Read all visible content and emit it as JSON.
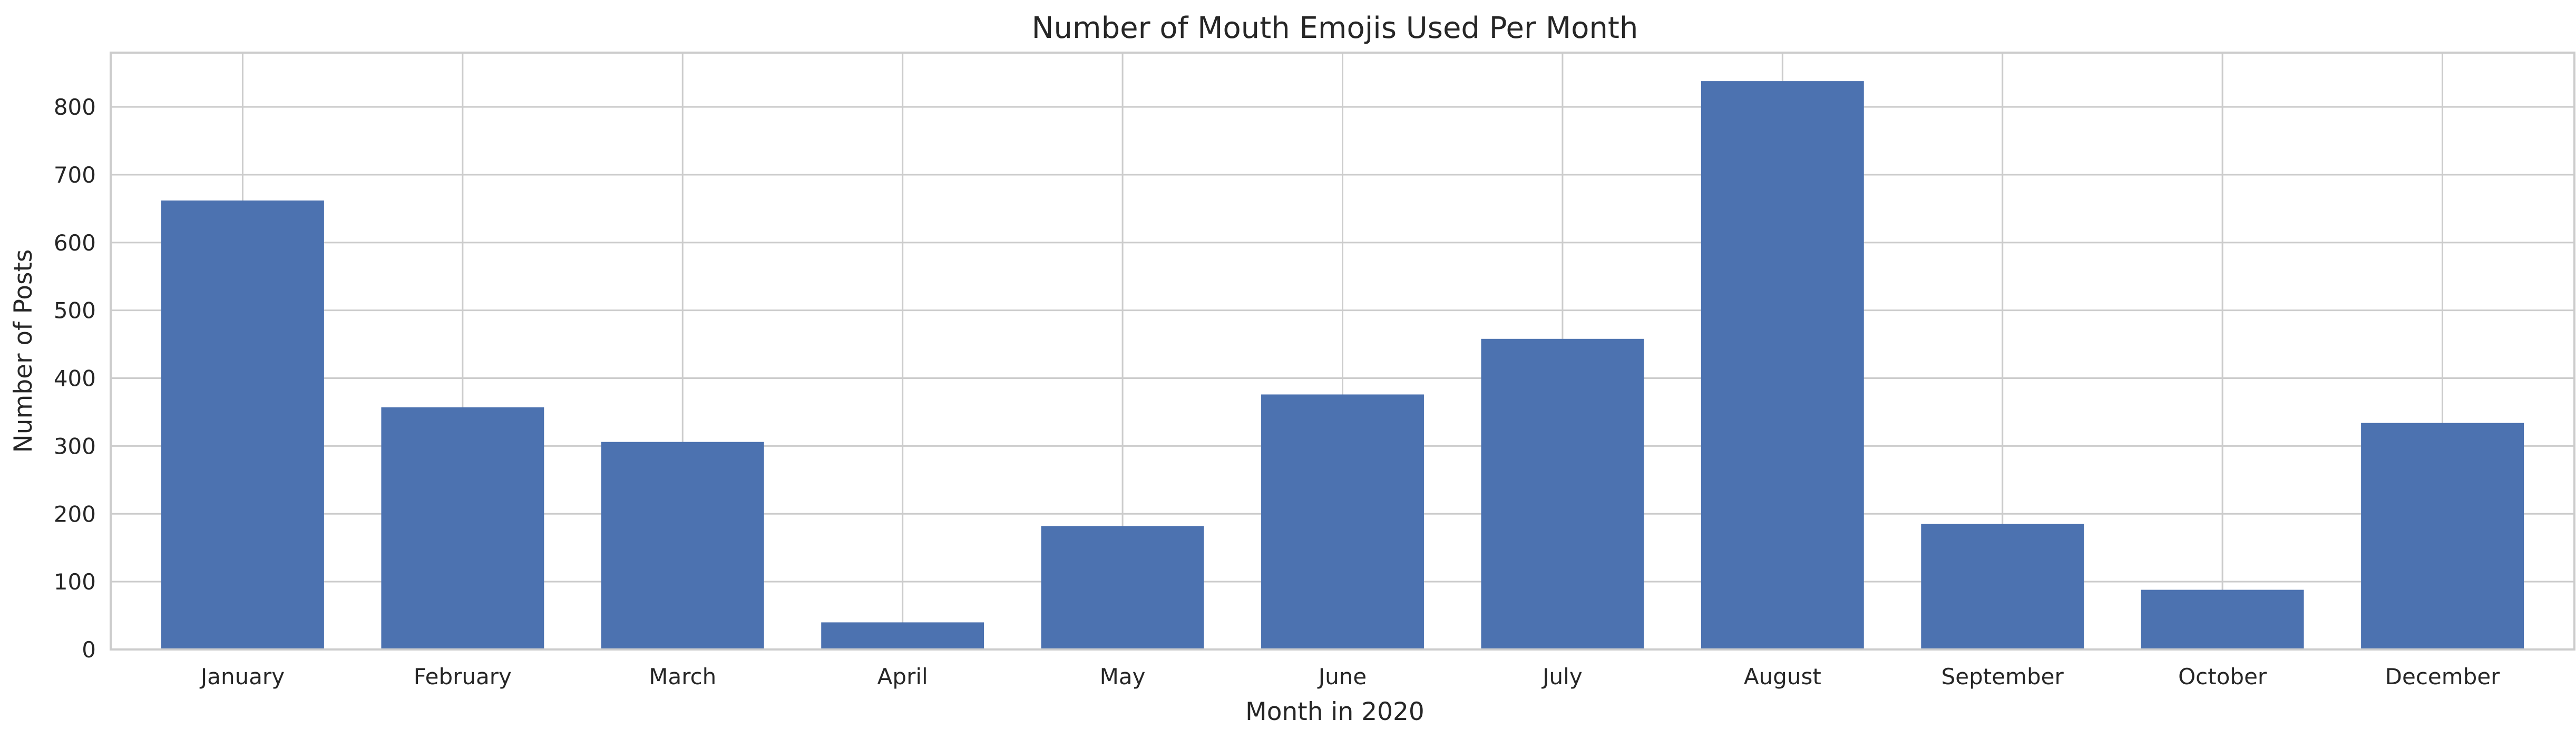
{
  "chart_data": {
    "type": "bar",
    "title": "Number of Mouth Emojis Used Per Month",
    "xlabel": "Month in 2020",
    "ylabel": "Number of Posts",
    "categories": [
      "January",
      "February",
      "March",
      "April",
      "May",
      "June",
      "July",
      "August",
      "September",
      "October",
      "December"
    ],
    "values": [
      662,
      357,
      306,
      40,
      182,
      376,
      458,
      838,
      185,
      88,
      334
    ],
    "ylim": [
      0,
      880
    ],
    "yticks": [
      0,
      100,
      200,
      300,
      400,
      500,
      600,
      700,
      800
    ],
    "grid": true,
    "bar_color": "#4C72B0",
    "grid_color": "#CCCCCC",
    "spine_color": "#CCCCCC"
  }
}
